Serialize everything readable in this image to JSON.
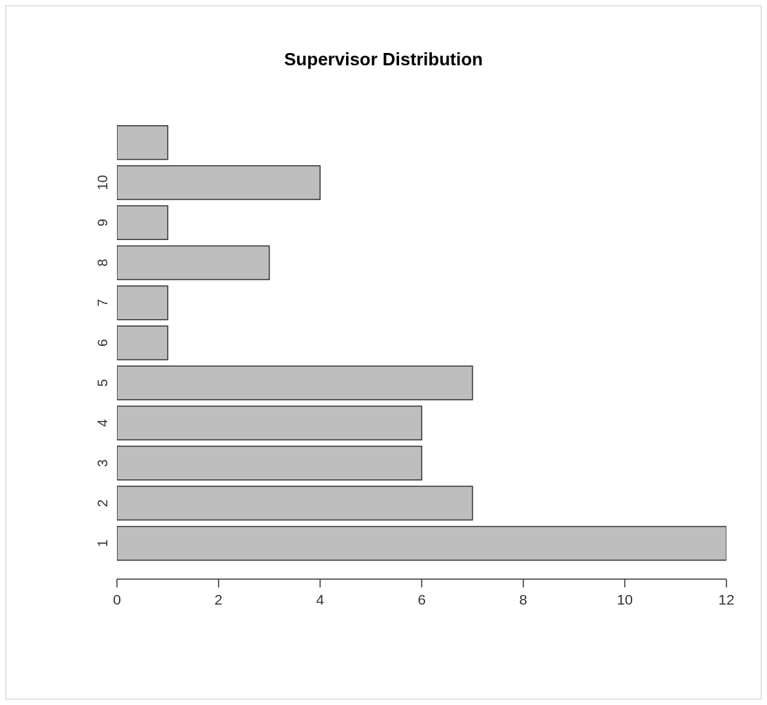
{
  "chart_data": {
    "type": "bar",
    "title": "Supervisor Distribution",
    "orientation": "horizontal",
    "categories": [
      null,
      "10",
      "9",
      "8",
      "7",
      "6",
      "5",
      "4",
      "3",
      "2",
      "1"
    ],
    "values": [
      1,
      4,
      1,
      3,
      1,
      1,
      7,
      6,
      6,
      7,
      12
    ],
    "color": "#bebebe",
    "xlim": [
      0,
      12
    ],
    "xticks": [
      0,
      2,
      4,
      6,
      8,
      10,
      12
    ],
    "grid": false,
    "legend": false
  }
}
